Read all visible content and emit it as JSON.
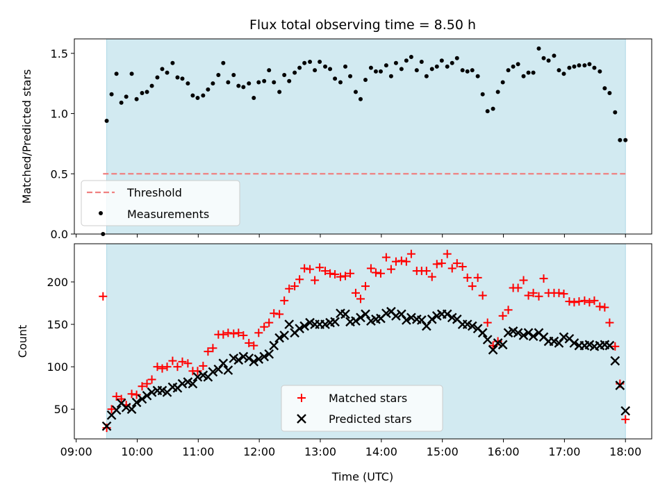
{
  "chart_data": {
    "title": "Flux total observing time = 8.50 h",
    "xlabel": "Time (UTC)",
    "xticks": [
      {
        "value": 9.0,
        "label": "09:00"
      },
      {
        "value": 10.0,
        "label": "10:00"
      },
      {
        "value": 11.0,
        "label": "11:00"
      },
      {
        "value": 12.0,
        "label": "12:00"
      },
      {
        "value": 13.0,
        "label": "13:00"
      },
      {
        "value": 14.0,
        "label": "14:00"
      },
      {
        "value": 15.0,
        "label": "15:00"
      },
      {
        "value": 16.0,
        "label": "16:00"
      },
      {
        "value": 17.0,
        "label": "17:00"
      },
      {
        "value": 18.0,
        "label": "18:00"
      }
    ],
    "xlim": [
      8.97,
      18.43
    ],
    "shaded_span": [
      9.5,
      18.0
    ],
    "colors": {
      "shade": "#add8e6",
      "threshold": "#f08080",
      "measurements": "#000000",
      "matched": "#ff0000",
      "predicted": "#000000"
    },
    "panels": [
      {
        "type": "scatter",
        "ylabel": "Matched/Predicted stars",
        "ylim": [
          0,
          1.62
        ],
        "yticks": [
          {
            "value": 0.0,
            "label": "0.0"
          },
          {
            "value": 0.5,
            "label": "0.5"
          },
          {
            "value": 1.0,
            "label": "1.0"
          },
          {
            "value": 1.5,
            "label": "1.5"
          }
        ],
        "legend": {
          "placement": "lower-left",
          "entries": [
            "Threshold",
            "Measurements"
          ]
        },
        "threshold": {
          "name": "Threshold",
          "y": 0.5,
          "x": [
            9.44,
            18.0
          ],
          "style": "dashed"
        },
        "series": [
          {
            "name": "Measurements",
            "x": [
              9.44,
              9.5,
              9.58,
              9.66,
              9.74,
              9.82,
              9.91,
              9.99,
              10.08,
              10.16,
              10.24,
              10.33,
              10.41,
              10.49,
              10.58,
              10.66,
              10.74,
              10.83,
              10.91,
              10.99,
              11.08,
              11.16,
              11.24,
              11.33,
              11.41,
              11.49,
              11.58,
              11.66,
              11.74,
              11.83,
              11.91,
              11.99,
              12.08,
              12.16,
              12.24,
              12.33,
              12.41,
              12.49,
              12.58,
              12.66,
              12.74,
              12.83,
              12.91,
              12.99,
              13.08,
              13.16,
              13.24,
              13.33,
              13.41,
              13.49,
              13.58,
              13.66,
              13.74,
              13.83,
              13.91,
              13.99,
              14.08,
              14.16,
              14.24,
              14.33,
              14.41,
              14.49,
              14.58,
              14.66,
              14.74,
              14.83,
              14.91,
              14.99,
              15.08,
              15.16,
              15.24,
              15.33,
              15.41,
              15.49,
              15.58,
              15.66,
              15.74,
              15.83,
              15.91,
              15.99,
              16.08,
              16.16,
              16.24,
              16.33,
              16.41,
              16.49,
              16.58,
              16.66,
              16.74,
              16.83,
              16.91,
              16.99,
              17.08,
              17.16,
              17.24,
              17.33,
              17.41,
              17.49,
              17.58,
              17.66,
              17.74,
              17.83,
              17.91,
              18.0
            ],
            "y": [
              0.0,
              0.94,
              1.16,
              1.33,
              1.09,
              1.14,
              1.33,
              1.12,
              1.17,
              1.18,
              1.23,
              1.3,
              1.37,
              1.34,
              1.42,
              1.3,
              1.29,
              1.25,
              1.15,
              1.13,
              1.15,
              1.2,
              1.25,
              1.32,
              1.42,
              1.26,
              1.32,
              1.23,
              1.22,
              1.25,
              1.13,
              1.26,
              1.27,
              1.36,
              1.26,
              1.18,
              1.32,
              1.27,
              1.34,
              1.38,
              1.42,
              1.43,
              1.36,
              1.43,
              1.39,
              1.37,
              1.29,
              1.26,
              1.39,
              1.31,
              1.18,
              1.12,
              1.28,
              1.38,
              1.35,
              1.35,
              1.4,
              1.31,
              1.42,
              1.37,
              1.44,
              1.47,
              1.36,
              1.43,
              1.31,
              1.37,
              1.39,
              1.44,
              1.39,
              1.42,
              1.46,
              1.36,
              1.35,
              1.36,
              1.31,
              1.16,
              1.02,
              1.04,
              1.18,
              1.26,
              1.36,
              1.39,
              1.41,
              1.31,
              1.34,
              1.34,
              1.54,
              1.46,
              1.44,
              1.48,
              1.36,
              1.33,
              1.38,
              1.39,
              1.4,
              1.4,
              1.41,
              1.38,
              1.35,
              1.21,
              1.17,
              1.01,
              0.78,
              0.78
            ]
          }
        ]
      },
      {
        "type": "scatter",
        "ylabel": "Count",
        "ylim": [
          15,
          245
        ],
        "yticks": [
          {
            "value": 50,
            "label": "50"
          },
          {
            "value": 100,
            "label": "100"
          },
          {
            "value": 150,
            "label": "150"
          },
          {
            "value": 200,
            "label": "200"
          }
        ],
        "legend": {
          "placement": "lower-center",
          "entries": [
            "Matched stars",
            "Predicted stars"
          ]
        },
        "series": [
          {
            "name": "Matched stars",
            "marker": "+",
            "x": [
              9.44,
              9.5,
              9.58,
              9.66,
              9.74,
              9.82,
              9.91,
              9.99,
              10.08,
              10.16,
              10.24,
              10.33,
              10.41,
              10.49,
              10.58,
              10.66,
              10.74,
              10.83,
              10.91,
              10.99,
              11.08,
              11.16,
              11.24,
              11.33,
              11.41,
              11.49,
              11.58,
              11.66,
              11.74,
              11.83,
              11.91,
              11.99,
              12.08,
              12.16,
              12.24,
              12.33,
              12.41,
              12.49,
              12.58,
              12.66,
              12.74,
              12.83,
              12.91,
              12.99,
              13.08,
              13.16,
              13.24,
              13.33,
              13.41,
              13.49,
              13.58,
              13.66,
              13.74,
              13.83,
              13.91,
              13.99,
              14.08,
              14.16,
              14.24,
              14.33,
              14.41,
              14.49,
              14.58,
              14.66,
              14.74,
              14.83,
              14.91,
              14.99,
              15.08,
              15.16,
              15.24,
              15.33,
              15.41,
              15.49,
              15.58,
              15.66,
              15.74,
              15.83,
              15.91,
              15.99,
              16.08,
              16.16,
              16.24,
              16.33,
              16.41,
              16.49,
              16.58,
              16.66,
              16.74,
              16.83,
              16.91,
              16.99,
              17.08,
              17.16,
              17.24,
              17.33,
              17.41,
              17.49,
              17.58,
              17.66,
              17.74,
              17.83,
              17.91,
              18.0
            ],
            "y": [
              183,
              28,
              50,
              65,
              62,
              55,
              68,
              67,
              77,
              80,
              85,
              100,
              98,
              100,
              107,
              100,
              106,
              104,
              95,
              95,
              101,
              118,
              122,
              138,
              138,
              140,
              139,
              140,
              137,
              128,
              125,
              140,
              147,
              152,
              163,
              162,
              178,
              192,
              195,
              203,
              216,
              215,
              202,
              217,
              213,
              210,
              209,
              206,
              207,
              210,
              187,
              180,
              195,
              216,
              211,
              210,
              229,
              215,
              224,
              225,
              224,
              233,
              213,
              213,
              213,
              206,
              221,
              222,
              233,
              216,
              222,
              218,
              205,
              195,
              205,
              184,
              152,
              125,
              130,
              160,
              167,
              193,
              193,
              202,
              184,
              187,
              183,
              204,
              187,
              187,
              187,
              186,
              177,
              176,
              177,
              178,
              176,
              178,
              171,
              170,
              152,
              124,
              80,
              38
            ]
          },
          {
            "name": "Predicted stars",
            "marker": "x",
            "x": [
              9.5,
              9.58,
              9.66,
              9.74,
              9.82,
              9.91,
              9.99,
              10.08,
              10.16,
              10.24,
              10.33,
              10.41,
              10.49,
              10.58,
              10.66,
              10.74,
              10.83,
              10.91,
              10.99,
              11.08,
              11.16,
              11.24,
              11.33,
              11.41,
              11.49,
              11.58,
              11.66,
              11.74,
              11.83,
              11.91,
              11.99,
              12.08,
              12.16,
              12.24,
              12.33,
              12.41,
              12.49,
              12.58,
              12.66,
              12.74,
              12.83,
              12.91,
              12.99,
              13.08,
              13.16,
              13.24,
              13.33,
              13.41,
              13.49,
              13.58,
              13.66,
              13.74,
              13.83,
              13.91,
              13.99,
              14.08,
              14.16,
              14.24,
              14.33,
              14.41,
              14.49,
              14.58,
              14.66,
              14.74,
              14.83,
              14.91,
              14.99,
              15.08,
              15.16,
              15.24,
              15.33,
              15.41,
              15.49,
              15.58,
              15.66,
              15.74,
              15.83,
              15.91,
              15.99,
              16.08,
              16.16,
              16.24,
              16.33,
              16.41,
              16.49,
              16.58,
              16.66,
              16.74,
              16.83,
              16.91,
              16.99,
              17.08,
              17.16,
              17.24,
              17.33,
              17.41,
              17.49,
              17.58,
              17.66,
              17.74,
              17.83,
              17.91,
              18.0
            ],
            "y": [
              30,
              43,
              49,
              57,
              52,
              50,
              58,
              62,
              66,
              70,
              72,
              72,
              70,
              76,
              75,
              80,
              82,
              80,
              88,
              90,
              88,
              94,
              97,
              104,
              96,
              110,
              108,
              112,
              110,
              106,
              109,
              112,
              115,
              125,
              134,
              137,
              150,
              140,
              145,
              148,
              152,
              150,
              150,
              150,
              152,
              153,
              163,
              162,
              153,
              154,
              158,
              162,
              154,
              156,
              157,
              163,
              165,
              160,
              162,
              155,
              158,
              156,
              155,
              148,
              156,
              160,
              162,
              162,
              158,
              156,
              150,
              150,
              148,
              145,
              140,
              132,
              120,
              128,
              126,
              140,
              142,
              140,
              137,
              140,
              136,
              140,
              135,
              130,
              130,
              128,
              135,
              133,
              128,
              125,
              125,
              126,
              124,
              125,
              126,
              125,
              107,
              78,
              48
            ]
          }
        ]
      }
    ]
  }
}
